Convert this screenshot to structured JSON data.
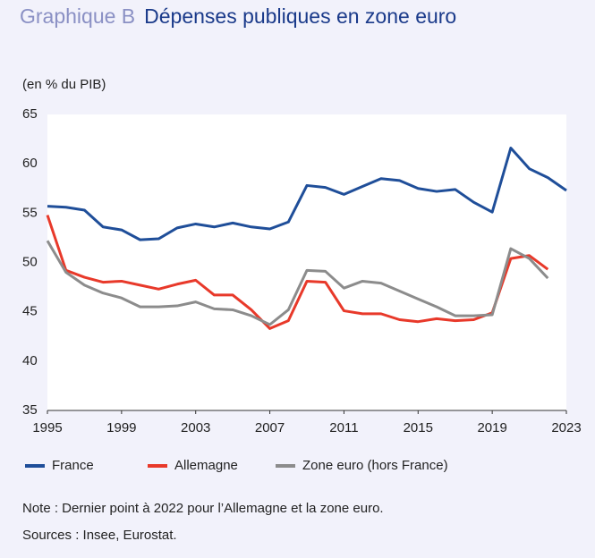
{
  "chart_data": {
    "type": "line",
    "title_prefix": "Graphique B",
    "title": "Dépenses publiques en zone euro",
    "ylabel": "(en % du PIB)",
    "x": [
      1995,
      1996,
      1997,
      1998,
      1999,
      2000,
      2001,
      2002,
      2003,
      2004,
      2005,
      2006,
      2007,
      2008,
      2009,
      2010,
      2011,
      2012,
      2013,
      2014,
      2015,
      2016,
      2017,
      2018,
      2019,
      2020,
      2021,
      2022,
      2023
    ],
    "series": [
      {
        "name": "France",
        "color": "#1f4e99",
        "values": [
          55.7,
          55.6,
          55.3,
          53.6,
          53.3,
          52.3,
          52.4,
          53.5,
          53.9,
          53.6,
          54.0,
          53.6,
          53.4,
          54.1,
          57.8,
          57.6,
          56.9,
          57.7,
          58.5,
          58.3,
          57.5,
          57.2,
          57.4,
          56.1,
          55.1,
          61.6,
          59.5,
          58.6,
          57.3
        ]
      },
      {
        "name": "Allemagne",
        "color": "#e8392a",
        "values": [
          54.8,
          49.2,
          48.5,
          48.0,
          48.1,
          47.7,
          47.3,
          47.8,
          48.2,
          46.7,
          46.7,
          45.2,
          43.3,
          44.1,
          48.1,
          48.0,
          45.1,
          44.8,
          44.8,
          44.2,
          44.0,
          44.3,
          44.1,
          44.2,
          44.9,
          50.4,
          50.7,
          49.3,
          null
        ]
      },
      {
        "name": "Zone euro (hors France)",
        "color": "#8c8c8c",
        "values": [
          52.2,
          49.0,
          47.7,
          46.9,
          46.4,
          45.5,
          45.5,
          45.6,
          46.0,
          45.3,
          45.2,
          44.6,
          43.7,
          45.2,
          49.2,
          49.1,
          47.4,
          48.1,
          47.9,
          47.1,
          46.3,
          45.5,
          44.6,
          44.6,
          44.7,
          51.4,
          50.4,
          48.4,
          null
        ]
      }
    ],
    "xlim": [
      1995,
      2023
    ],
    "xticks": [
      1995,
      1999,
      2003,
      2007,
      2011,
      2015,
      2019,
      2023
    ],
    "ylim": [
      35,
      65
    ],
    "yticks": [
      35,
      40,
      45,
      50,
      55,
      60,
      65
    ],
    "grid": false,
    "notes": [
      "Note : Dernier point à 2022 pour l’Allemagne et la zone euro.",
      "Sources : Insee, Eurostat."
    ]
  }
}
